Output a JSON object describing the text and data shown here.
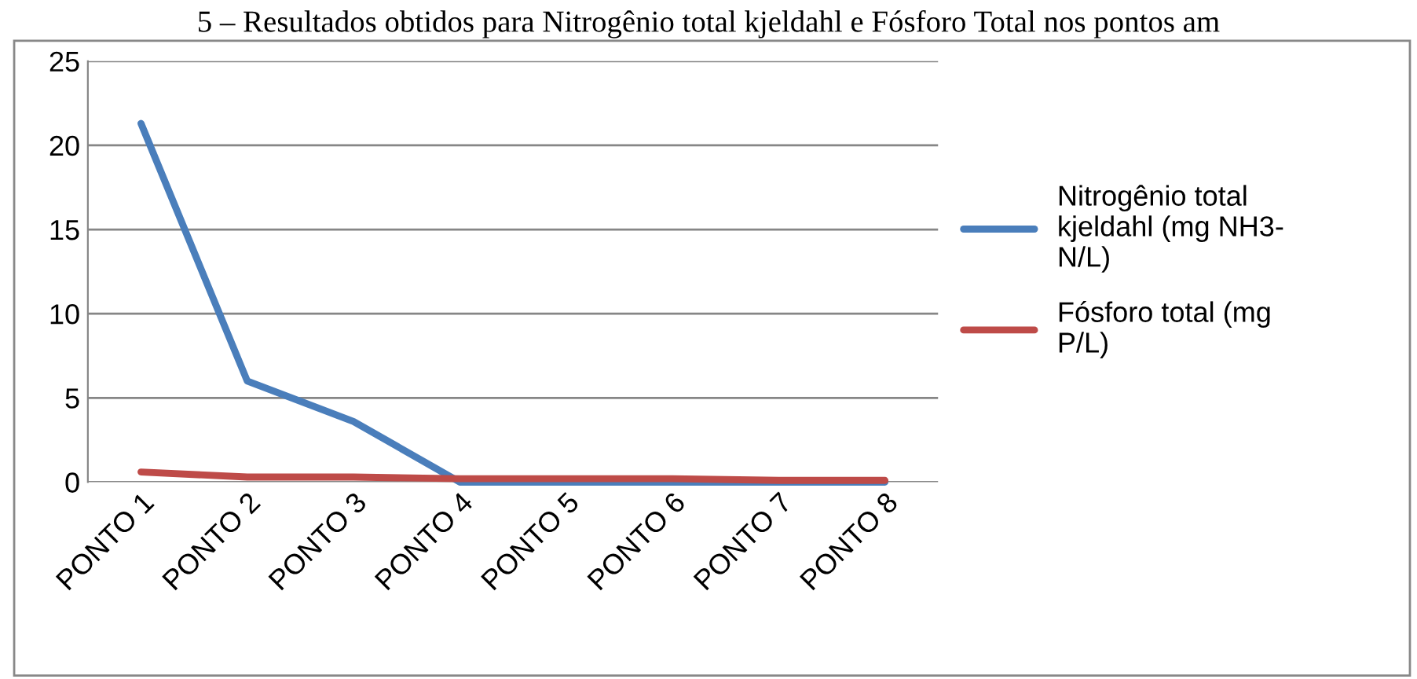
{
  "chart_data": {
    "type": "line",
    "title": "5 – Resultados obtidos para Nitrogênio total kjeldahl e Fósforo Total nos pontos am",
    "categories": [
      "PONTO 1",
      "PONTO 2",
      "PONTO 3",
      "PONTO 4",
      "PONTO 5",
      "PONTO 6",
      "PONTO 7",
      "PONTO 8"
    ],
    "series": [
      {
        "name": "Nitrogênio total\nkjeldahl (mg NH3-\nN/L)",
        "color": "#4a7ebb",
        "values": [
          21.3,
          6.0,
          3.6,
          0,
          0,
          0,
          0,
          0
        ]
      },
      {
        "name": "Fósforo total (mg\nP/L)",
        "color": "#be4b48",
        "values": [
          0.6,
          0.3,
          0.3,
          0.2,
          0.2,
          0.2,
          0.1,
          0.1
        ]
      }
    ],
    "ylim": [
      0,
      25
    ],
    "yticks": [
      0,
      5,
      10,
      15,
      20,
      25
    ],
    "grid": "y",
    "legend": "right",
    "marker": "none",
    "line_style": "solid"
  }
}
